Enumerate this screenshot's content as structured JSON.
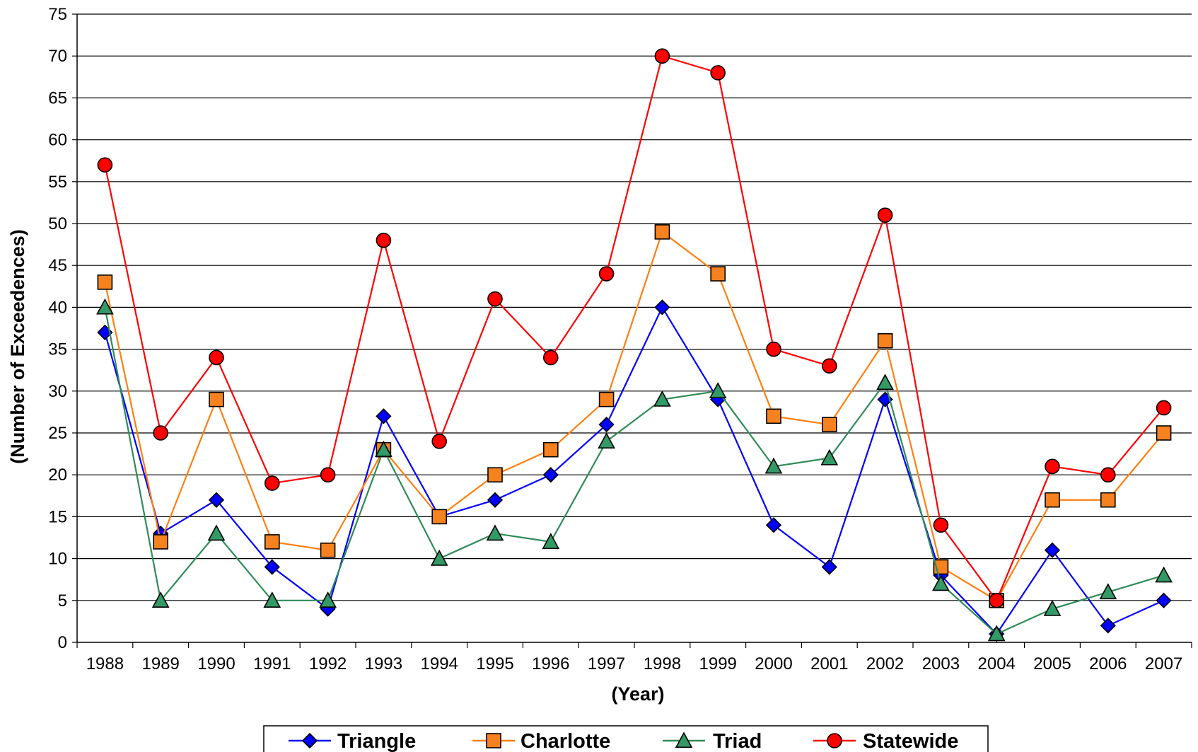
{
  "chart_data": {
    "type": "line",
    "title": "",
    "xlabel": "(Year)",
    "ylabel": "(Number of Exceedences)",
    "ylim": [
      0,
      75
    ],
    "ytick_step": 5,
    "grid": true,
    "legend_position": "bottom",
    "categories": [
      "1988",
      "1989",
      "1990",
      "1991",
      "1992",
      "1993",
      "1994",
      "1995",
      "1996",
      "1997",
      "1998",
      "1999",
      "2000",
      "2001",
      "2002",
      "2003",
      "2004",
      "2005",
      "2006",
      "2007"
    ],
    "series": [
      {
        "name": "Triangle",
        "color": "#0000ff",
        "marker": "diamond",
        "marker_fill": "#0000ff",
        "values": [
          37,
          13,
          17,
          9,
          4,
          27,
          15,
          17,
          20,
          26,
          40,
          29,
          14,
          9,
          29,
          8,
          1,
          11,
          2,
          5
        ]
      },
      {
        "name": "Charlotte",
        "color": "#ff7f0e",
        "marker": "square",
        "marker_fill": "#f5821f",
        "values": [
          43,
          12,
          29,
          12,
          11,
          23,
          15,
          20,
          23,
          29,
          49,
          44,
          27,
          26,
          36,
          9,
          5,
          17,
          17,
          25
        ]
      },
      {
        "name": "Triad",
        "color": "#2e8b57",
        "marker": "triangle",
        "marker_fill": "#339966",
        "values": [
          40,
          5,
          13,
          5,
          5,
          23,
          10,
          13,
          12,
          24,
          29,
          30,
          21,
          22,
          31,
          7,
          1,
          4,
          6,
          8
        ]
      },
      {
        "name": "Statewide",
        "color": "#ff0000",
        "marker": "circle",
        "marker_fill": "#ff0000",
        "values": [
          57,
          25,
          34,
          19,
          20,
          48,
          24,
          41,
          34,
          44,
          70,
          68,
          35,
          33,
          51,
          14,
          5,
          21,
          20,
          28
        ]
      }
    ]
  }
}
